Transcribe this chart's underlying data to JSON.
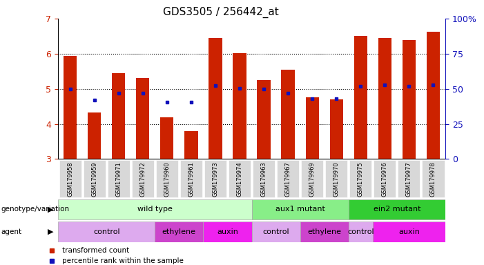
{
  "title": "GDS3505 / 256442_at",
  "samples": [
    "GSM179958",
    "GSM179959",
    "GSM179971",
    "GSM179972",
    "GSM179960",
    "GSM179961",
    "GSM179973",
    "GSM179974",
    "GSM179963",
    "GSM179967",
    "GSM179969",
    "GSM179970",
    "GSM179975",
    "GSM179976",
    "GSM179977",
    "GSM179978"
  ],
  "bar_values": [
    5.93,
    4.32,
    5.45,
    5.3,
    4.18,
    3.8,
    6.45,
    6.02,
    5.25,
    5.55,
    4.75,
    4.7,
    6.5,
    6.45,
    6.38,
    6.62
  ],
  "dot_values": [
    5.0,
    4.68,
    4.88,
    4.88,
    4.62,
    4.62,
    5.1,
    5.02,
    5.0,
    4.88,
    4.72,
    4.72,
    5.08,
    5.12,
    5.08,
    5.12
  ],
  "ylim": [
    3.0,
    7.0
  ],
  "yticks": [
    3,
    4,
    5,
    6,
    7
  ],
  "right_ytick_vals": [
    0,
    25,
    50,
    75,
    100
  ],
  "right_ytick_labels": [
    "0",
    "25",
    "50",
    "75",
    "100%"
  ],
  "bar_color": "#cc2200",
  "dot_color": "#1111bb",
  "genotype_groups": [
    {
      "label": "wild type",
      "start": 0,
      "end": 7,
      "color": "#ccffcc"
    },
    {
      "label": "aux1 mutant",
      "start": 8,
      "end": 11,
      "color": "#88ee88"
    },
    {
      "label": "ein2 mutant",
      "start": 12,
      "end": 15,
      "color": "#33cc33"
    }
  ],
  "agent_groups": [
    {
      "label": "control",
      "start": 0,
      "end": 3,
      "color": "#ddaaee"
    },
    {
      "label": "ethylene",
      "start": 4,
      "end": 5,
      "color": "#cc44cc"
    },
    {
      "label": "auxin",
      "start": 6,
      "end": 7,
      "color": "#ee22ee"
    },
    {
      "label": "control",
      "start": 8,
      "end": 9,
      "color": "#ddaaee"
    },
    {
      "label": "ethylene",
      "start": 10,
      "end": 11,
      "color": "#cc44cc"
    },
    {
      "label": "control",
      "start": 12,
      "end": 12,
      "color": "#ddaaee"
    },
    {
      "label": "auxin",
      "start": 13,
      "end": 15,
      "color": "#ee22ee"
    }
  ],
  "tick_label_bg": "#d8d8d8",
  "background_color": "#ffffff",
  "left_axis_color": "#cc2200",
  "right_axis_color": "#1111bb",
  "legend": [
    {
      "label": "transformed count",
      "color": "#cc2200",
      "marker": "s"
    },
    {
      "label": "percentile rank within the sample",
      "color": "#1111bb",
      "marker": "s"
    }
  ]
}
